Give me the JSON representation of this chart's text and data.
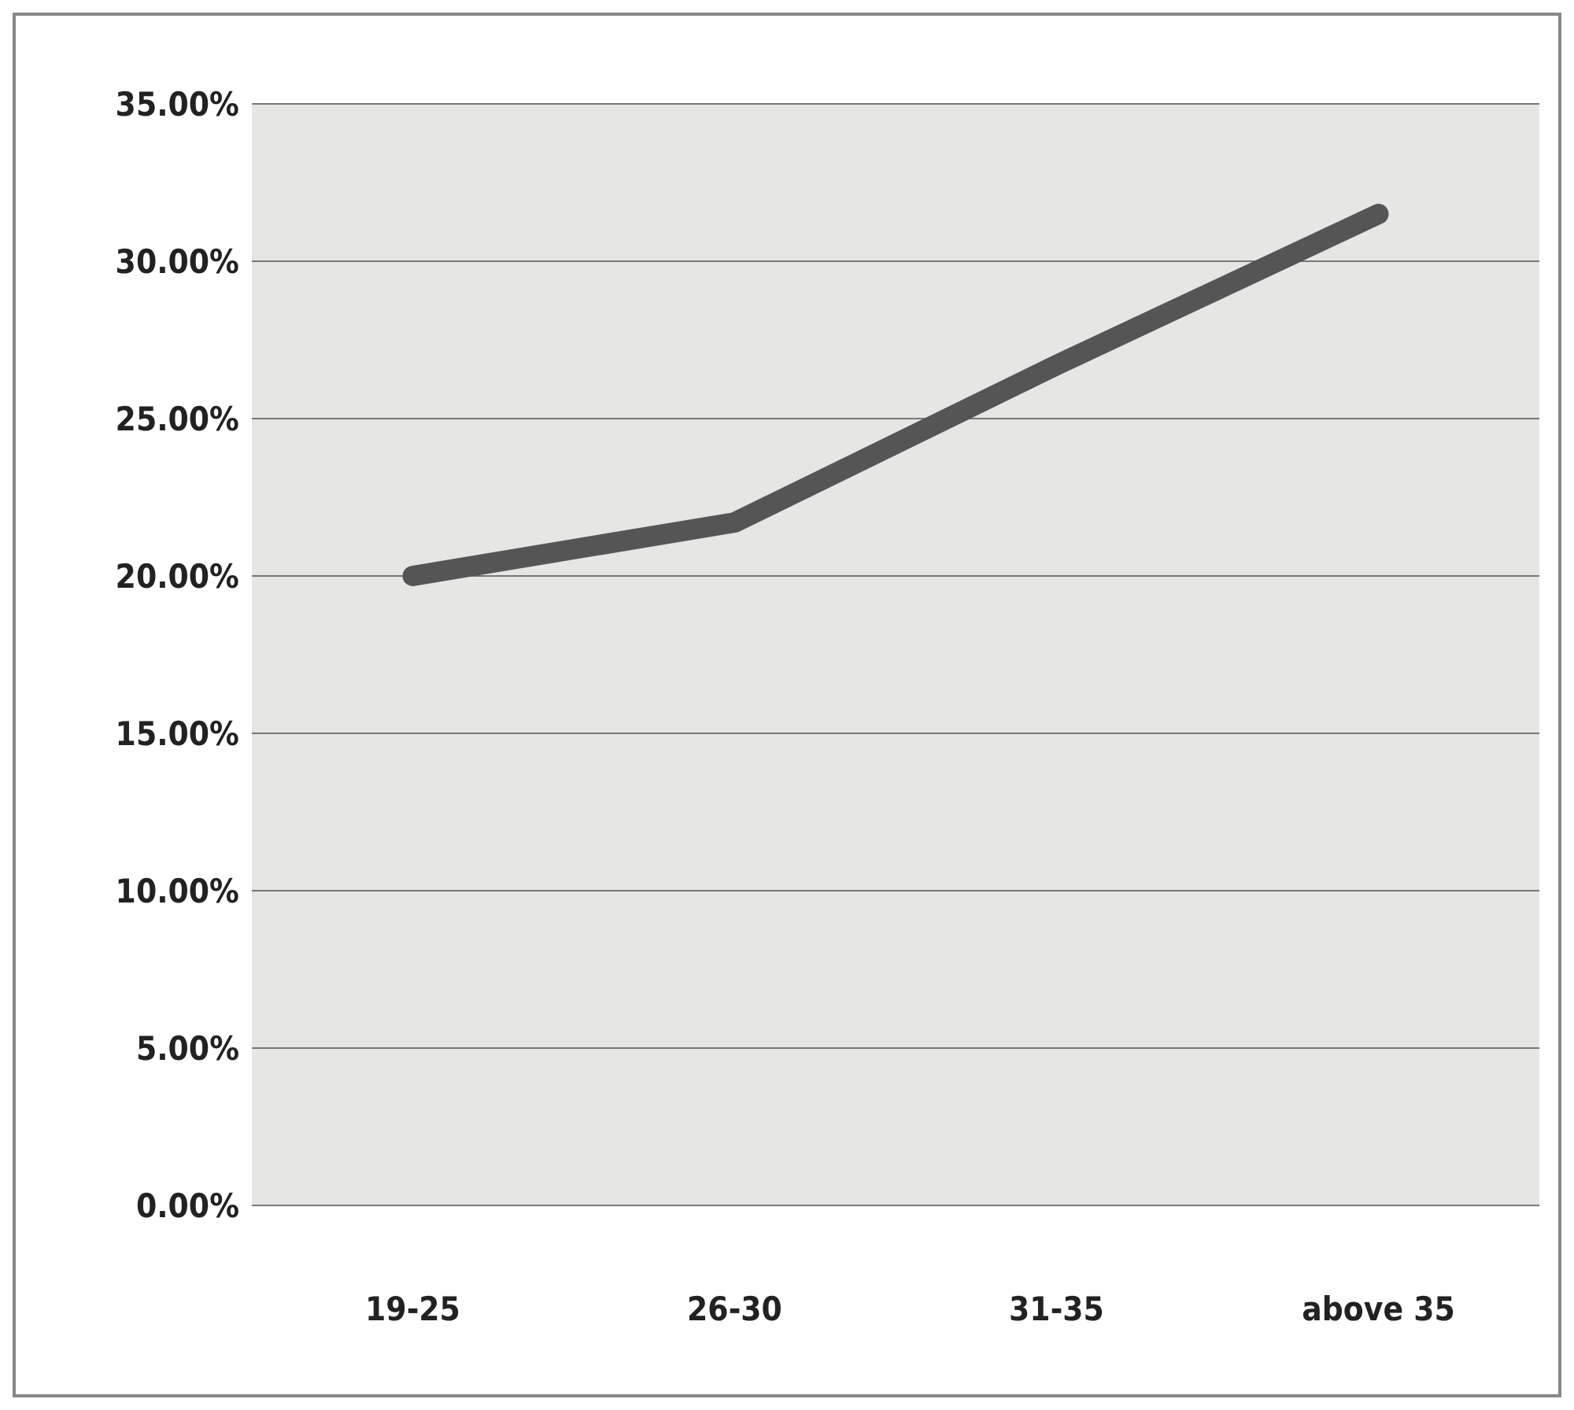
{
  "chart_data": {
    "type": "line",
    "categories": [
      "19-25",
      "26-30",
      "31-35",
      "above 35"
    ],
    "series": [
      {
        "color": "#555555",
        "values": [
          20,
          21.7,
          26.7,
          31.5
        ]
      }
    ],
    "ylim": [
      0,
      35
    ],
    "yticks": [
      {
        "value": 0,
        "label": "0.00%"
      },
      {
        "value": 5,
        "label": "5.00%"
      },
      {
        "value": 10,
        "label": "10.00%"
      },
      {
        "value": 15,
        "label": "15.00%"
      },
      {
        "value": 20,
        "label": "20.00%"
      },
      {
        "value": 25,
        "label": "25.00%"
      },
      {
        "value": 30,
        "label": "30.00%"
      },
      {
        "value": 35,
        "label": "35.00%"
      }
    ],
    "grid": "y",
    "legend": false,
    "marker": "none",
    "line_style": "solid"
  }
}
